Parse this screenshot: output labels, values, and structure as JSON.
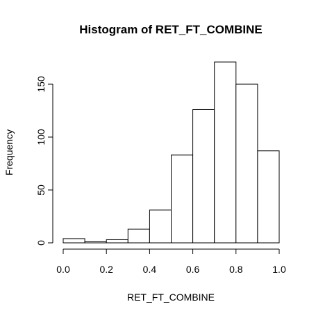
{
  "chart_data": {
    "type": "bar",
    "title": "Histogram of RET_FT_COMBINE",
    "xlabel": "RET_FT_COMBINE",
    "ylabel": "Frequency",
    "bins": [
      {
        "x0": 0.0,
        "x1": 0.1,
        "count": 4
      },
      {
        "x0": 0.1,
        "x1": 0.2,
        "count": 1
      },
      {
        "x0": 0.2,
        "x1": 0.3,
        "count": 3
      },
      {
        "x0": 0.3,
        "x1": 0.4,
        "count": 13
      },
      {
        "x0": 0.4,
        "x1": 0.5,
        "count": 31
      },
      {
        "x0": 0.5,
        "x1": 0.6,
        "count": 83
      },
      {
        "x0": 0.6,
        "x1": 0.7,
        "count": 126
      },
      {
        "x0": 0.7,
        "x1": 0.8,
        "count": 171
      },
      {
        "x0": 0.8,
        "x1": 0.9,
        "count": 150
      },
      {
        "x0": 0.9,
        "x1": 1.0,
        "count": 87
      }
    ],
    "x_ticks": [
      "0.0",
      "0.2",
      "0.4",
      "0.6",
      "0.8",
      "1.0"
    ],
    "y_ticks": [
      "0",
      "50",
      "100",
      "150"
    ],
    "xlim": [
      0.0,
      1.0
    ],
    "ylim": [
      0,
      171
    ],
    "grid": false,
    "legend": "none"
  }
}
